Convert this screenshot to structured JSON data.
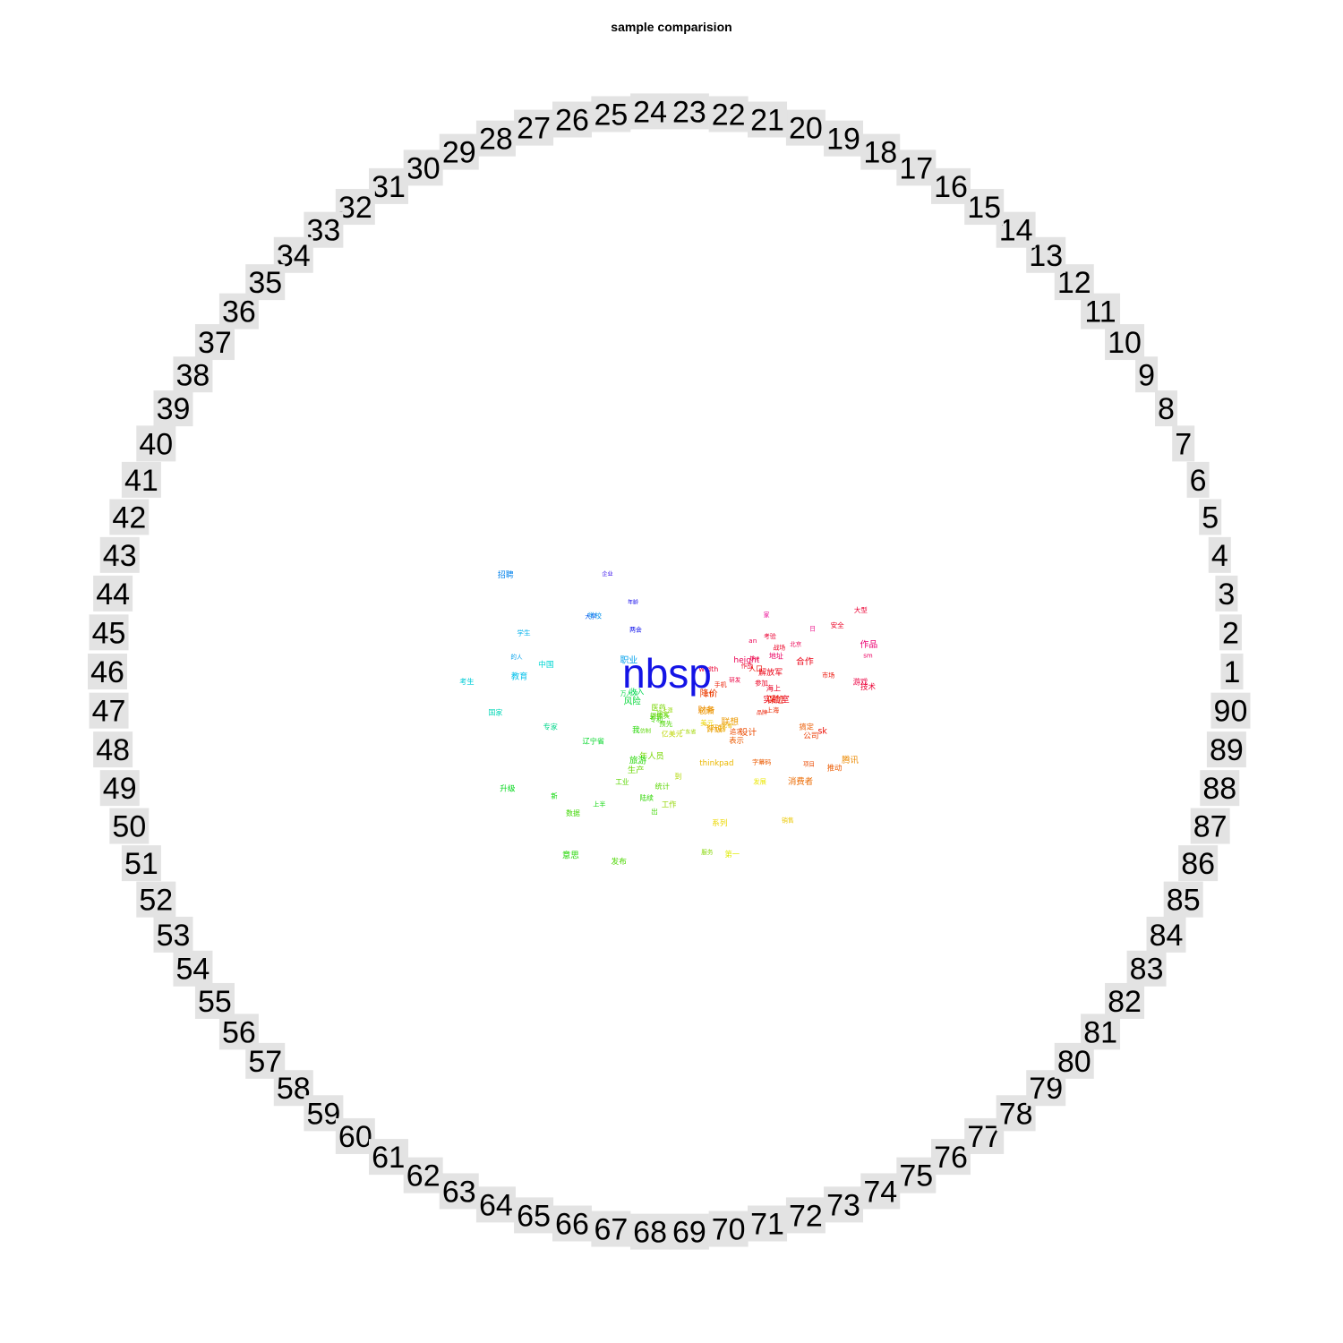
{
  "chart_data": {
    "type": "wordcloud-comparison",
    "title": "sample comparision",
    "ring_labels": [
      "1",
      "2",
      "3",
      "4",
      "5",
      "6",
      "7",
      "8",
      "9",
      "10",
      "11",
      "12",
      "13",
      "14",
      "15",
      "16",
      "17",
      "18",
      "19",
      "20",
      "21",
      "22",
      "23",
      "24",
      "25",
      "26",
      "27",
      "28",
      "29",
      "30",
      "31",
      "32",
      "33",
      "34",
      "35",
      "36",
      "37",
      "38",
      "39",
      "40",
      "41",
      "42",
      "43",
      "44",
      "45",
      "46",
      "47",
      "48",
      "49",
      "50",
      "51",
      "52",
      "53",
      "54",
      "55",
      "56",
      "57",
      "58",
      "59",
      "60",
      "61",
      "62",
      "63",
      "64",
      "65",
      "66",
      "67",
      "68",
      "69",
      "70",
      "71",
      "72",
      "73",
      "74",
      "75",
      "76",
      "77",
      "78",
      "79",
      "80",
      "81",
      "82",
      "83",
      "84",
      "85",
      "86",
      "87",
      "88",
      "89",
      "90"
    ],
    "ring_label_background": "#e3e3e3",
    "highlight_word": {
      "text": "nbsp",
      "color": "#1414e6"
    },
    "words": [
      {
        "text": "北京",
        "group": 5
      },
      {
        "text": "地址",
        "group": 6
      },
      {
        "text": "游戏",
        "group": 4
      },
      {
        "text": "height",
        "group": 5
      },
      {
        "text": "width",
        "group": 3
      },
      {
        "text": "日",
        "group": 8
      },
      {
        "text": "家",
        "group": 9
      },
      {
        "text": "作品",
        "group": 7
      },
      {
        "text": "实验室",
        "group": 1
      },
      {
        "text": "海上",
        "group": 2
      },
      {
        "text": "作战",
        "group": 2
      },
      {
        "text": "考验",
        "group": 3
      },
      {
        "text": "the",
        "group": 4
      },
      {
        "text": "an",
        "group": 5
      },
      {
        "text": "sm",
        "group": 6
      },
      {
        "text": "战场",
        "group": 2
      },
      {
        "text": "解放军",
        "group": 1
      },
      {
        "text": "手机",
        "group": 88
      },
      {
        "text": "支付",
        "group": 86
      },
      {
        "text": "公司",
        "group": 86
      },
      {
        "text": "人口",
        "group": 89
      },
      {
        "text": "保险",
        "group": 88
      },
      {
        "text": "上海",
        "group": 87
      },
      {
        "text": "项目",
        "group": 85
      },
      {
        "text": "消费者",
        "group": 83
      },
      {
        "text": "腾讯",
        "group": 81
      },
      {
        "text": "搞定",
        "group": 84
      },
      {
        "text": "追求",
        "group": 85
      },
      {
        "text": "thinkpad",
        "group": 78
      },
      {
        "text": "联想",
        "group": 80
      },
      {
        "text": "表示",
        "group": 84
      },
      {
        "text": "降价",
        "group": 86
      },
      {
        "text": "推动",
        "group": 84
      },
      {
        "text": "财务",
        "group": 81
      },
      {
        "text": "记者",
        "group": 78
      },
      {
        "text": "系列",
        "group": 76
      },
      {
        "text": "销售",
        "group": 77
      },
      {
        "text": "广东省",
        "group": 71
      },
      {
        "text": "医药",
        "group": 68
      },
      {
        "text": "服务",
        "group": 69
      },
      {
        "text": "研究",
        "group": 67
      },
      {
        "text": "摄像头",
        "group": 66
      },
      {
        "text": "年人员",
        "group": 68
      },
      {
        "text": "仿制",
        "group": 66
      },
      {
        "text": "专利",
        "group": 64
      },
      {
        "text": "工业",
        "group": 66
      },
      {
        "text": "数据",
        "group": 64
      },
      {
        "text": "旅游",
        "group": 62
      },
      {
        "text": "上半",
        "group": 60
      },
      {
        "text": "风险",
        "group": 56
      },
      {
        "text": "万人次",
        "group": 55
      },
      {
        "text": "收入",
        "group": 54
      },
      {
        "text": "辽宁省",
        "group": 57
      },
      {
        "text": "陆续",
        "group": 63
      },
      {
        "text": "升级",
        "group": 58
      },
      {
        "text": "发布",
        "group": 65
      },
      {
        "text": "意思",
        "group": 62
      },
      {
        "text": "中国",
        "group": 45
      },
      {
        "text": "考生",
        "group": 44
      },
      {
        "text": "教育",
        "group": 42
      },
      {
        "text": "职业",
        "group": 40
      },
      {
        "text": "学生",
        "group": 41
      },
      {
        "text": "国家",
        "group": 47
      },
      {
        "text": "招聘",
        "group": 38
      },
      {
        "text": "学校",
        "group": 39
      },
      {
        "text": "的人",
        "group": 40
      },
      {
        "text": "两会",
        "group": 30
      },
      {
        "text": "年龄",
        "group": 29
      },
      {
        "text": "企业",
        "group": 27
      },
      {
        "text": "我",
        "group": 62
      },
      {
        "text": "新",
        "group": 60
      },
      {
        "text": "出",
        "group": 64
      },
      {
        "text": "美元",
        "group": 76
      },
      {
        "text": "第一",
        "group": 74
      },
      {
        "text": "亿美元",
        "group": 73
      },
      {
        "text": "到",
        "group": 72
      },
      {
        "text": "上涨",
        "group": 70
      },
      {
        "text": "统计",
        "group": 66
      },
      {
        "text": "预先",
        "group": 65
      },
      {
        "text": "品牌",
        "group": 88
      },
      {
        "text": "sk",
        "group": 89
      },
      {
        "text": "字幕码",
        "group": 84
      },
      {
        "text": "评级",
        "group": 80
      },
      {
        "text": "飞行器",
        "group": 79
      },
      {
        "text": "大型",
        "group": 3
      },
      {
        "text": "安全",
        "group": 2
      },
      {
        "text": "研发",
        "group": 4
      },
      {
        "text": "合作",
        "group": 1
      },
      {
        "text": "参加",
        "group": 2
      },
      {
        "text": "技术",
        "group": 3
      },
      {
        "text": "市场",
        "group": 89
      },
      {
        "text": "创新",
        "group": 80
      },
      {
        "text": "发展",
        "group": 75
      },
      {
        "text": "工作",
        "group": 70
      },
      {
        "text": "生产",
        "group": 67
      },
      {
        "text": "专家",
        "group": 50
      },
      {
        "text": "大学",
        "group": 35
      },
      {
        "text": "设计",
        "group": 85
      }
    ]
  }
}
